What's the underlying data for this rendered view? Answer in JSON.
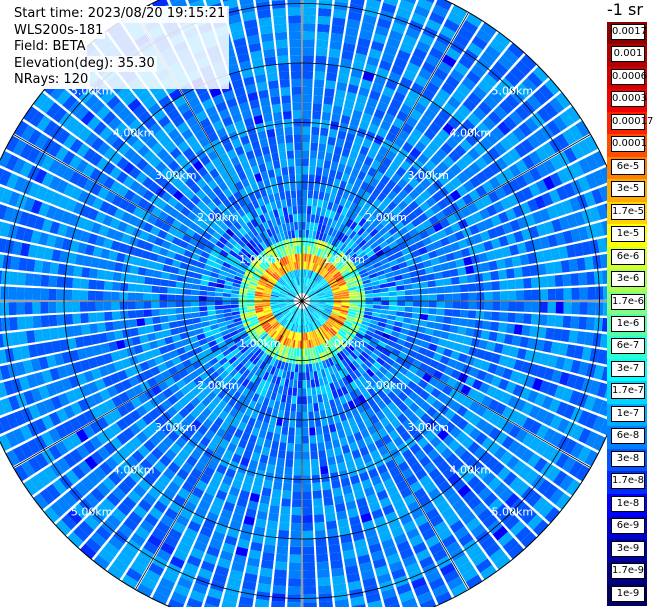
{
  "header": {
    "start_time": "Start time: 2023/08/20 19:15:21",
    "instrument": "WLS200s-181",
    "field": "Field: BETA",
    "elevation": "Elevation(deg): 35.30",
    "nrays": "NRays: 120"
  },
  "colorbar": {
    "unit_label": "-1 sr",
    "segments": [
      {
        "label": "0.0017",
        "color": "#8b0000"
      },
      {
        "label": "0.001",
        "color": "#b00000"
      },
      {
        "label": "0.0006",
        "color": "#d20000"
      },
      {
        "label": "0.0003",
        "color": "#f00000"
      },
      {
        "label": "0.00017",
        "color": "#ff2200"
      },
      {
        "label": "0.0001",
        "color": "#ff5000"
      },
      {
        "label": "6e-5",
        "color": "#ff8000"
      },
      {
        "label": "3e-5",
        "color": "#ffaa00"
      },
      {
        "label": "1.7e-5",
        "color": "#ffd200"
      },
      {
        "label": "1e-5",
        "color": "#ffff00"
      },
      {
        "label": "6e-6",
        "color": "#d4ff2a"
      },
      {
        "label": "3e-6",
        "color": "#aaff55"
      },
      {
        "label": "1.7e-6",
        "color": "#80ff80"
      },
      {
        "label": "1e-6",
        "color": "#55ffaa"
      },
      {
        "label": "6e-7",
        "color": "#2affd4"
      },
      {
        "label": "3e-7",
        "color": "#00ffff"
      },
      {
        "label": "1.7e-7",
        "color": "#00d4ff"
      },
      {
        "label": "1e-7",
        "color": "#00aaff"
      },
      {
        "label": "6e-8",
        "color": "#0080ff"
      },
      {
        "label": "3e-8",
        "color": "#0055ff"
      },
      {
        "label": "1.7e-8",
        "color": "#002aff"
      },
      {
        "label": "1e-8",
        "color": "#0000ff"
      },
      {
        "label": "6e-9",
        "color": "#0000d0"
      },
      {
        "label": "3e-9",
        "color": "#0000a8"
      },
      {
        "label": "1.7e-9",
        "color": "#000080"
      },
      {
        "label": "1e-9",
        "color": "#000060"
      }
    ]
  },
  "polar": {
    "range_labels": [
      "1.00km",
      "2.00km",
      "3.00km",
      "4.00km",
      "5.00km"
    ],
    "max_range_km": 5.6,
    "ring_step_km": 1.0,
    "spoke_step_deg": 30
  }
}
